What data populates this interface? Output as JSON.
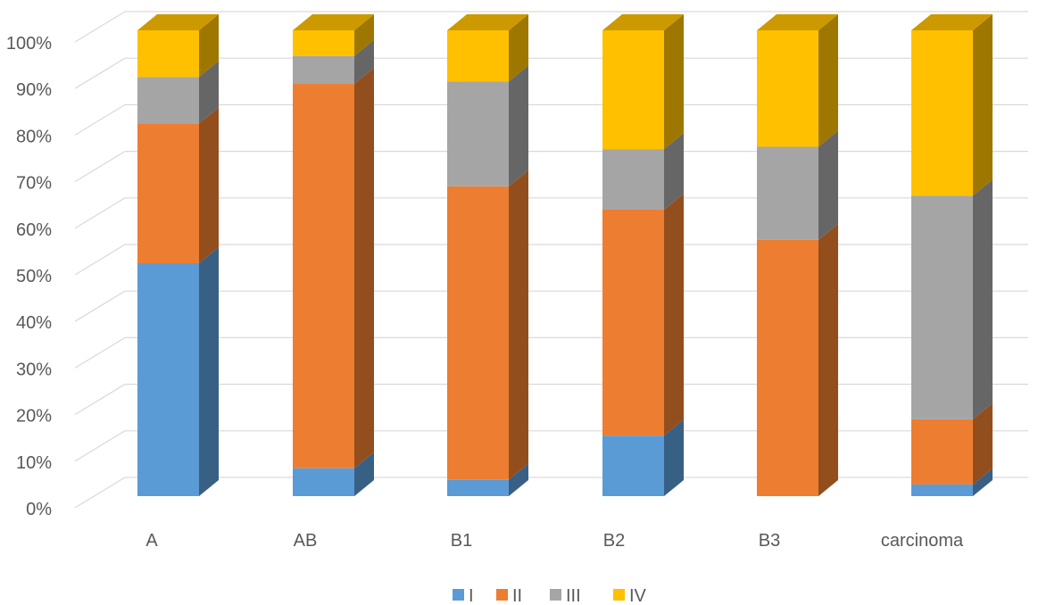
{
  "chart_data": {
    "type": "bar",
    "stacked": "percent",
    "style": "3d-column",
    "categories": [
      "A",
      "AB",
      "B1",
      "B2",
      "B3",
      "carcinoma"
    ],
    "series": [
      {
        "name": "I",
        "color": "#5B9BD5",
        "values": [
          50,
          6,
          3.5,
          13,
          0,
          2.5
        ]
      },
      {
        "name": "II",
        "color": "#ED7D31",
        "values": [
          30,
          82.5,
          63,
          48.5,
          55,
          14
        ]
      },
      {
        "name": "III",
        "color": "#A5A5A5",
        "values": [
          10,
          6,
          22.5,
          13,
          20,
          48
        ]
      },
      {
        "name": "IV",
        "color": "#FFC000",
        "values": [
          10,
          5.5,
          11,
          25.5,
          25,
          35.5
        ]
      }
    ],
    "y_ticks": [
      "0%",
      "10%",
      "20%",
      "30%",
      "40%",
      "50%",
      "60%",
      "70%",
      "80%",
      "90%",
      "100%"
    ],
    "ylim": [
      0,
      100
    ],
    "grid": true,
    "legend_position": "bottom",
    "title": "",
    "xlabel": "",
    "ylabel": ""
  }
}
